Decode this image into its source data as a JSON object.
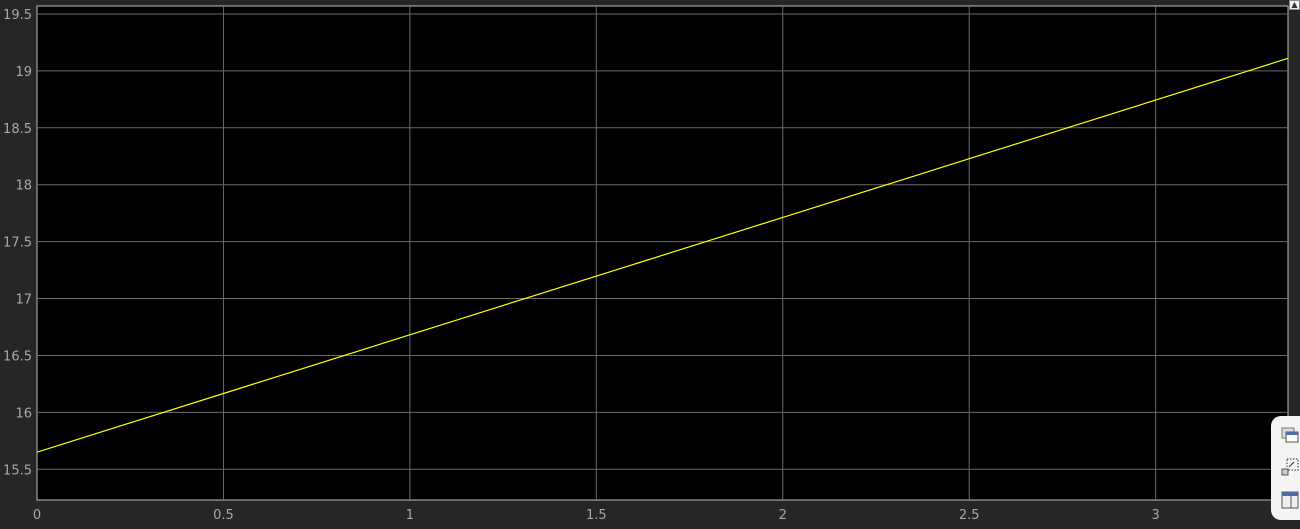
{
  "chart_data": {
    "type": "line",
    "title": "",
    "xlabel": "",
    "ylabel": "",
    "xlim": [
      0,
      3.355
    ],
    "ylim": [
      15.23,
      19.57
    ],
    "xticks": [
      "0",
      "0.5",
      "1",
      "1.5",
      "2",
      "2.5",
      "3"
    ],
    "yticks": [
      "15.5",
      "16",
      "16.5",
      "17",
      "17.5",
      "18",
      "18.5",
      "19",
      "19.5"
    ],
    "grid": true,
    "background": "#000000",
    "series": [
      {
        "color": "#ffff00",
        "x": [
          0,
          3.355
        ],
        "y": [
          15.65,
          19.11
        ]
      }
    ]
  },
  "toolbar": {
    "icons": [
      "undock-icon",
      "zoom-restore-icon",
      "layout-icon"
    ]
  }
}
